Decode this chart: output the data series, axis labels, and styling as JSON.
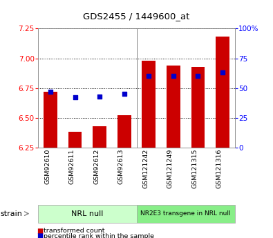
{
  "title": "GDS2455 / 1449600_at",
  "categories": [
    "GSM92610",
    "GSM92611",
    "GSM92612",
    "GSM92613",
    "GSM121242",
    "GSM121249",
    "GSM121315",
    "GSM121316"
  ],
  "bar_values": [
    6.72,
    6.38,
    6.43,
    6.52,
    6.98,
    6.94,
    6.93,
    7.18
  ],
  "percentile_values": [
    47,
    42,
    43,
    45,
    60,
    60,
    60,
    63
  ],
  "ylim_left": [
    6.25,
    7.25
  ],
  "ylim_right": [
    0,
    100
  ],
  "yticks_left": [
    6.25,
    6.5,
    6.75,
    7.0,
    7.25
  ],
  "yticks_right": [
    0,
    25,
    50,
    75,
    100
  ],
  "ytick_labels_right": [
    "0",
    "25",
    "50",
    "75",
    "100%"
  ],
  "bar_color": "#cc0000",
  "dot_color": "#0000cc",
  "group1_label": "NRL null",
  "group2_label": "NR2E3 transgene in NRL null",
  "group1_color": "#ccffcc",
  "group2_color": "#88ee88",
  "strain_label": "strain",
  "legend_bar_label": "transformed count",
  "legend_dot_label": "percentile rank within the sample",
  "bar_bottom": 6.25,
  "dot_size": 18,
  "bar_width": 0.55,
  "fig_width": 3.95,
  "fig_height": 3.45,
  "dpi": 100
}
